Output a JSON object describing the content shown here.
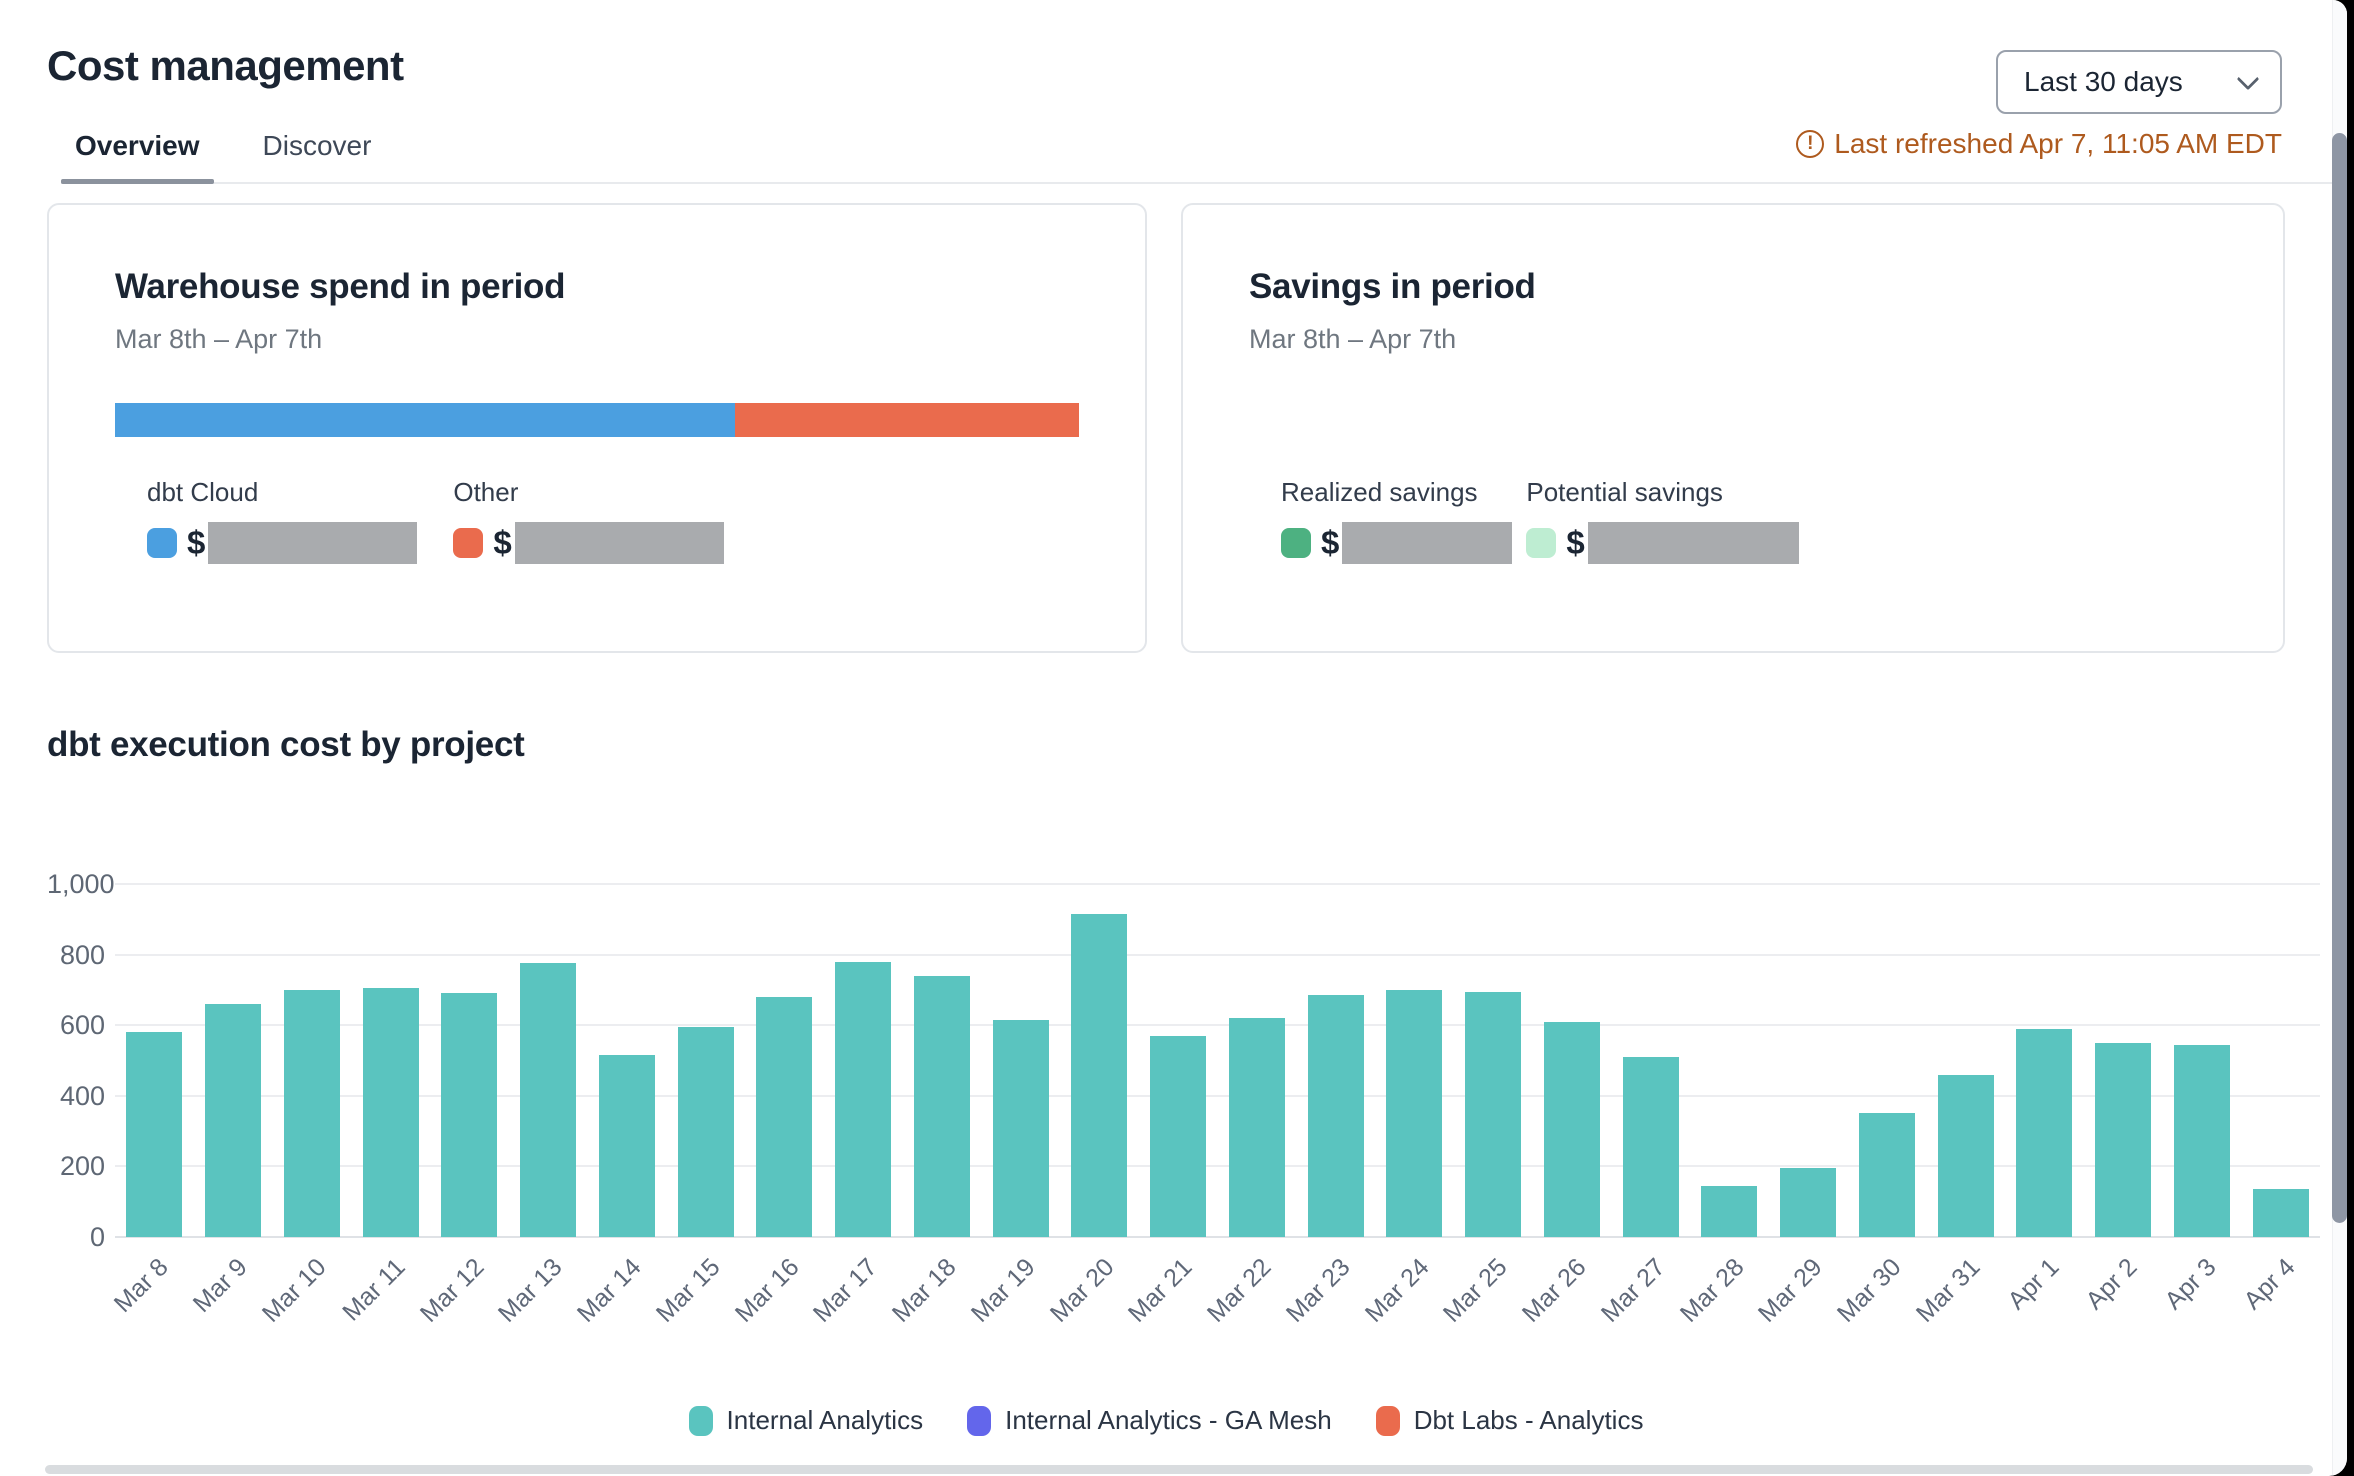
{
  "header": {
    "title": "Cost management",
    "period_selector": "Last 30 days",
    "last_refreshed": "Last refreshed Apr 7, 11:05 AM EDT",
    "last_refreshed_color": "#ae5a1e"
  },
  "tabs": [
    {
      "label": "Overview",
      "active": true
    },
    {
      "label": "Discover",
      "active": false
    }
  ],
  "cards": {
    "warehouse": {
      "title": "Warehouse spend in period",
      "date_range": "Mar 8th – Apr 7th",
      "stacked_bar": {
        "segments": [
          {
            "name": "dbt Cloud",
            "color": "#4b9fe0",
            "percent": 64.3
          },
          {
            "name": "Other",
            "color": "#ea6b4d",
            "percent": 35.7
          }
        ]
      },
      "legend": [
        {
          "label": "dbt Cloud",
          "color": "#4b9fe0",
          "value_prefix": "$",
          "value_redacted": true
        },
        {
          "label": "Other",
          "color": "#ea6b4d",
          "value_prefix": "$",
          "value_redacted": true
        }
      ]
    },
    "savings": {
      "title": "Savings in period",
      "date_range": "Mar 8th – Apr 7th",
      "legend": [
        {
          "label": "Realized savings",
          "color": "#4db181",
          "value_prefix": "$",
          "value_redacted": true
        },
        {
          "label": "Potential savings",
          "color": "#beedd2",
          "value_prefix": "$",
          "value_redacted": true
        }
      ]
    }
  },
  "chart_section": {
    "title": "dbt execution cost by project"
  },
  "chart_data": {
    "type": "bar",
    "title": "dbt execution cost by project",
    "categories": [
      "Mar 8",
      "Mar 9",
      "Mar 10",
      "Mar 11",
      "Mar 12",
      "Mar 13",
      "Mar 14",
      "Mar 15",
      "Mar 16",
      "Mar 17",
      "Mar 18",
      "Mar 19",
      "Mar 20",
      "Mar 21",
      "Mar 22",
      "Mar 23",
      "Mar 24",
      "Mar 25",
      "Mar 26",
      "Mar 27",
      "Mar 28",
      "Mar 29",
      "Mar 30",
      "Mar 31",
      "Apr 1",
      "Apr 2",
      "Apr 3",
      "Apr 4"
    ],
    "series": [
      {
        "name": "Internal Analytics",
        "color": "#5ac4bf",
        "values": [
          580,
          660,
          700,
          705,
          690,
          775,
          515,
          595,
          680,
          780,
          740,
          615,
          915,
          570,
          620,
          685,
          700,
          695,
          610,
          510,
          145,
          195,
          350,
          460,
          590,
          550,
          545,
          135
        ]
      }
    ],
    "legend": [
      {
        "label": "Internal Analytics",
        "color": "#5ac4bf"
      },
      {
        "label": "Internal Analytics - GA Mesh",
        "color": "#6366eb"
      },
      {
        "label": "Dbt Labs - Analytics",
        "color": "#ea6b4d"
      }
    ],
    "xlabel": "",
    "ylabel": "",
    "ylim": [
      0,
      1000
    ],
    "yticks": [
      0,
      200,
      400,
      600,
      800,
      1000
    ],
    "ytick_labels": [
      "0",
      "200",
      "400",
      "600",
      "800",
      "1,000"
    ],
    "grid": true,
    "legend_position": "bottom"
  }
}
